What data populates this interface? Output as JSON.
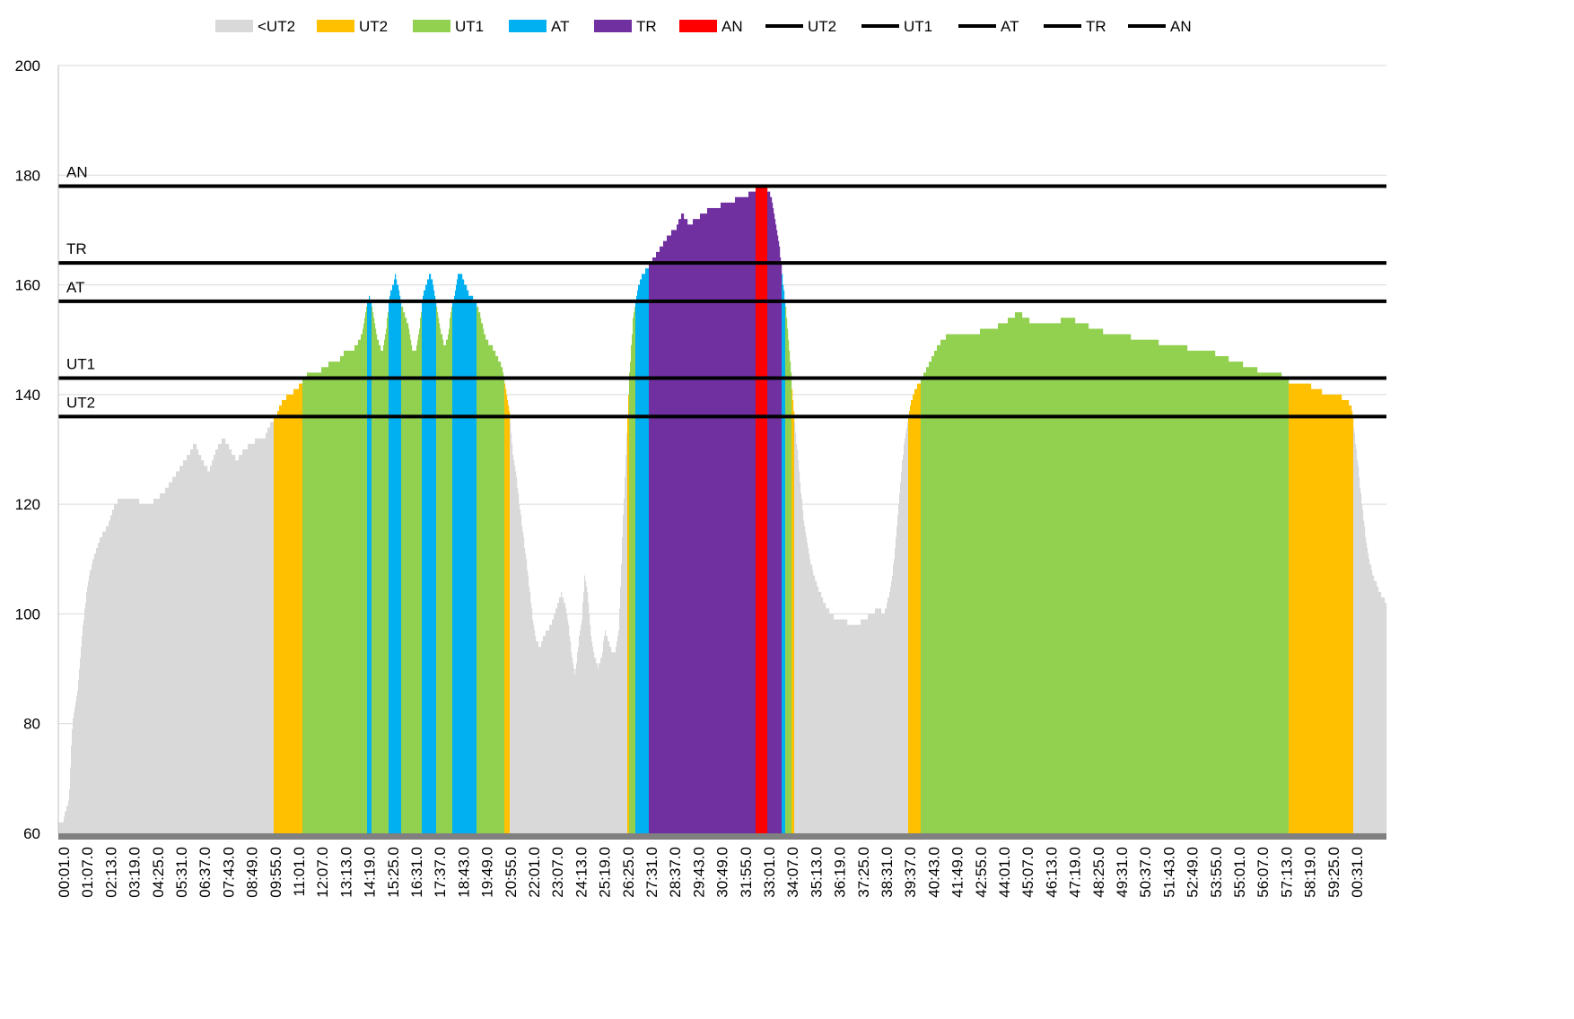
{
  "chart_data": {
    "type": "area",
    "title": "",
    "xlabel": "",
    "ylabel": "",
    "ylim": [
      60,
      200
    ],
    "yticks": [
      60,
      80,
      100,
      120,
      140,
      160,
      180,
      200
    ],
    "x_tick_labels": [
      "00:01.0",
      "01:07.0",
      "02:13.0",
      "03:19.0",
      "04:25.0",
      "05:31.0",
      "06:37.0",
      "07:43.0",
      "08:49.0",
      "09:55.0",
      "11:01.0",
      "12:07.0",
      "13:13.0",
      "14:19.0",
      "15:25.0",
      "16:31.0",
      "17:37.0",
      "18:43.0",
      "19:49.0",
      "20:55.0",
      "22:01.0",
      "23:07.0",
      "24:13.0",
      "25:19.0",
      "26:25.0",
      "27:31.0",
      "28:37.0",
      "29:43.0",
      "30:49.0",
      "31:55.0",
      "33:01.0",
      "34:07.0",
      "35:13.0",
      "36:19.0",
      "37:25.0",
      "38:31.0",
      "39:37.0",
      "40:43.0",
      "41:49.0",
      "42:55.0",
      "44:01.0",
      "45:07.0",
      "46:13.0",
      "47:19.0",
      "48:25.0",
      "49:31.0",
      "50:37.0",
      "51:43.0",
      "52:49.0",
      "53:55.0",
      "55:01.0",
      "56:07.0",
      "57:13.0",
      "58:19.0",
      "59:25.0",
      "00:31.0"
    ],
    "x_unit": "seconds",
    "x_range": [
      1,
      3691
    ],
    "grid": true,
    "legend_position": "top",
    "zones": [
      {
        "name": "<UT2",
        "color": "#d9d9d9"
      },
      {
        "name": "UT2",
        "color": "#ffc000"
      },
      {
        "name": "UT1",
        "color": "#92d050"
      },
      {
        "name": "AT",
        "color": "#00b0f0"
      },
      {
        "name": "TR",
        "color": "#7030a0"
      },
      {
        "name": "AN",
        "color": "#ff0000"
      }
    ],
    "reference_lines": [
      {
        "name": "UT2",
        "value": 136,
        "color": "#000000"
      },
      {
        "name": "UT1",
        "value": 143,
        "color": "#000000"
      },
      {
        "name": "AT",
        "value": 157,
        "color": "#000000"
      },
      {
        "name": "TR",
        "value": 164,
        "color": "#000000"
      },
      {
        "name": "AN",
        "value": 178,
        "color": "#000000"
      }
    ],
    "heart_rate_points": [
      [
        1,
        62
      ],
      [
        15,
        62
      ],
      [
        20,
        64
      ],
      [
        30,
        66
      ],
      [
        40,
        80
      ],
      [
        55,
        86
      ],
      [
        70,
        98
      ],
      [
        85,
        106
      ],
      [
        100,
        110
      ],
      [
        120,
        114
      ],
      [
        140,
        116
      ],
      [
        160,
        120
      ],
      [
        180,
        121
      ],
      [
        220,
        121
      ],
      [
        240,
        120
      ],
      [
        260,
        120
      ],
      [
        280,
        121
      ],
      [
        300,
        122
      ],
      [
        320,
        124
      ],
      [
        340,
        126
      ],
      [
        360,
        128
      ],
      [
        380,
        130
      ],
      [
        390,
        131
      ],
      [
        410,
        128
      ],
      [
        430,
        126
      ],
      [
        450,
        130
      ],
      [
        470,
        132
      ],
      [
        490,
        130
      ],
      [
        510,
        128
      ],
      [
        530,
        130
      ],
      [
        550,
        131
      ],
      [
        570,
        132
      ],
      [
        590,
        132
      ],
      [
        600,
        134
      ],
      [
        620,
        136
      ],
      [
        640,
        139
      ],
      [
        660,
        140
      ],
      [
        680,
        141
      ],
      [
        700,
        143
      ],
      [
        720,
        144
      ],
      [
        740,
        144
      ],
      [
        760,
        145
      ],
      [
        780,
        146
      ],
      [
        800,
        146
      ],
      [
        820,
        148
      ],
      [
        840,
        148
      ],
      [
        860,
        150
      ],
      [
        870,
        152
      ],
      [
        880,
        156
      ],
      [
        887,
        158
      ],
      [
        895,
        156
      ],
      [
        905,
        152
      ],
      [
        915,
        149
      ],
      [
        925,
        148
      ],
      [
        935,
        152
      ],
      [
        945,
        158
      ],
      [
        955,
        160
      ],
      [
        960,
        162
      ],
      [
        968,
        160
      ],
      [
        980,
        156
      ],
      [
        990,
        154
      ],
      [
        1000,
        152
      ],
      [
        1010,
        148
      ],
      [
        1020,
        148
      ],
      [
        1030,
        152
      ],
      [
        1040,
        158
      ],
      [
        1050,
        160
      ],
      [
        1060,
        162
      ],
      [
        1070,
        160
      ],
      [
        1080,
        156
      ],
      [
        1090,
        152
      ],
      [
        1100,
        149
      ],
      [
        1110,
        150
      ],
      [
        1120,
        155
      ],
      [
        1130,
        158
      ],
      [
        1140,
        162
      ],
      [
        1150,
        162
      ],
      [
        1160,
        160
      ],
      [
        1175,
        158
      ],
      [
        1190,
        157
      ],
      [
        1205,
        154
      ],
      [
        1220,
        150
      ],
      [
        1235,
        149
      ],
      [
        1250,
        147
      ],
      [
        1265,
        145
      ],
      [
        1275,
        141
      ],
      [
        1285,
        138
      ],
      [
        1295,
        130
      ],
      [
        1305,
        126
      ],
      [
        1315,
        120
      ],
      [
        1325,
        115
      ],
      [
        1335,
        110
      ],
      [
        1345,
        104
      ],
      [
        1355,
        98
      ],
      [
        1365,
        95
      ],
      [
        1375,
        94
      ],
      [
        1385,
        96
      ],
      [
        1395,
        97
      ],
      [
        1405,
        98
      ],
      [
        1415,
        100
      ],
      [
        1425,
        102
      ],
      [
        1435,
        104
      ],
      [
        1445,
        102
      ],
      [
        1455,
        98
      ],
      [
        1465,
        92
      ],
      [
        1475,
        89
      ],
      [
        1485,
        95
      ],
      [
        1495,
        100
      ],
      [
        1502,
        107
      ],
      [
        1510,
        104
      ],
      [
        1520,
        96
      ],
      [
        1530,
        92
      ],
      [
        1540,
        90
      ],
      [
        1550,
        92
      ],
      [
        1560,
        97
      ],
      [
        1570,
        95
      ],
      [
        1580,
        93
      ],
      [
        1590,
        93
      ],
      [
        1600,
        98
      ],
      [
        1610,
        115
      ],
      [
        1620,
        130
      ],
      [
        1630,
        144
      ],
      [
        1640,
        154
      ],
      [
        1650,
        158
      ],
      [
        1660,
        161
      ],
      [
        1670,
        162
      ],
      [
        1680,
        163
      ],
      [
        1700,
        165
      ],
      [
        1720,
        167
      ],
      [
        1740,
        169
      ],
      [
        1760,
        170
      ],
      [
        1780,
        173
      ],
      [
        1800,
        171
      ],
      [
        1820,
        172
      ],
      [
        1840,
        173
      ],
      [
        1860,
        174
      ],
      [
        1880,
        174
      ],
      [
        1900,
        175
      ],
      [
        1920,
        175
      ],
      [
        1940,
        176
      ],
      [
        1960,
        176
      ],
      [
        1980,
        177
      ],
      [
        2000,
        178
      ],
      [
        2020,
        178
      ],
      [
        2035,
        176
      ],
      [
        2045,
        172
      ],
      [
        2055,
        168
      ],
      [
        2065,
        162
      ],
      [
        2075,
        156
      ],
      [
        2085,
        148
      ],
      [
        2095,
        140
      ],
      [
        2105,
        132
      ],
      [
        2115,
        125
      ],
      [
        2125,
        118
      ],
      [
        2135,
        114
      ],
      [
        2145,
        110
      ],
      [
        2155,
        107
      ],
      [
        2165,
        105
      ],
      [
        2175,
        104
      ],
      [
        2185,
        102
      ],
      [
        2195,
        101
      ],
      [
        2205,
        100
      ],
      [
        2220,
        99
      ],
      [
        2240,
        99
      ],
      [
        2260,
        98
      ],
      [
        2280,
        98
      ],
      [
        2300,
        99
      ],
      [
        2320,
        100
      ],
      [
        2340,
        101
      ],
      [
        2355,
        100
      ],
      [
        2365,
        102
      ],
      [
        2375,
        105
      ],
      [
        2385,
        110
      ],
      [
        2395,
        118
      ],
      [
        2405,
        126
      ],
      [
        2415,
        132
      ],
      [
        2425,
        136
      ],
      [
        2435,
        139
      ],
      [
        2445,
        141
      ],
      [
        2455,
        142
      ],
      [
        2465,
        143
      ],
      [
        2480,
        145
      ],
      [
        2495,
        147
      ],
      [
        2510,
        149
      ],
      [
        2525,
        150
      ],
      [
        2540,
        151
      ],
      [
        2600,
        151
      ],
      [
        2660,
        152
      ],
      [
        2700,
        153
      ],
      [
        2720,
        154
      ],
      [
        2740,
        155
      ],
      [
        2760,
        154
      ],
      [
        2780,
        153
      ],
      [
        2800,
        153
      ],
      [
        2840,
        153
      ],
      [
        2880,
        154
      ],
      [
        2920,
        153
      ],
      [
        2960,
        152
      ],
      [
        3000,
        151
      ],
      [
        3040,
        151
      ],
      [
        3080,
        150
      ],
      [
        3120,
        150
      ],
      [
        3160,
        149
      ],
      [
        3200,
        149
      ],
      [
        3240,
        148
      ],
      [
        3280,
        148
      ],
      [
        3320,
        147
      ],
      [
        3360,
        146
      ],
      [
        3400,
        145
      ],
      [
        3440,
        144
      ],
      [
        3480,
        144
      ],
      [
        3500,
        143
      ],
      [
        3520,
        142
      ],
      [
        3560,
        142
      ],
      [
        3590,
        141
      ],
      [
        3620,
        140
      ],
      [
        3650,
        140
      ],
      [
        3675,
        139
      ],
      [
        3690,
        138
      ],
      [
        3700,
        132
      ],
      [
        3710,
        126
      ],
      [
        3720,
        120
      ],
      [
        3730,
        114
      ],
      [
        3740,
        110
      ],
      [
        3750,
        107
      ],
      [
        3760,
        106
      ],
      [
        3770,
        104
      ],
      [
        3780,
        103
      ],
      [
        3790,
        102
      ]
    ]
  },
  "legend_items": [
    {
      "label": "<UT2",
      "kind": "box",
      "color": "#d9d9d9"
    },
    {
      "label": "UT2",
      "kind": "box",
      "color": "#ffc000"
    },
    {
      "label": "UT1",
      "kind": "box",
      "color": "#92d050"
    },
    {
      "label": "AT",
      "kind": "box",
      "color": "#00b0f0"
    },
    {
      "label": "TR",
      "kind": "box",
      "color": "#7030a0"
    },
    {
      "label": "AN",
      "kind": "box",
      "color": "#ff0000"
    },
    {
      "label": "UT2",
      "kind": "line",
      "color": "#000000"
    },
    {
      "label": "UT1",
      "kind": "line",
      "color": "#000000"
    },
    {
      "label": "AT",
      "kind": "line",
      "color": "#000000"
    },
    {
      "label": "TR",
      "kind": "line",
      "color": "#000000"
    },
    {
      "label": "AN",
      "kind": "line",
      "color": "#000000"
    }
  ],
  "colors": {
    "gridline": "#d9d9d9",
    "axis": "#808080",
    "plot_border": "#bfbfbf"
  }
}
